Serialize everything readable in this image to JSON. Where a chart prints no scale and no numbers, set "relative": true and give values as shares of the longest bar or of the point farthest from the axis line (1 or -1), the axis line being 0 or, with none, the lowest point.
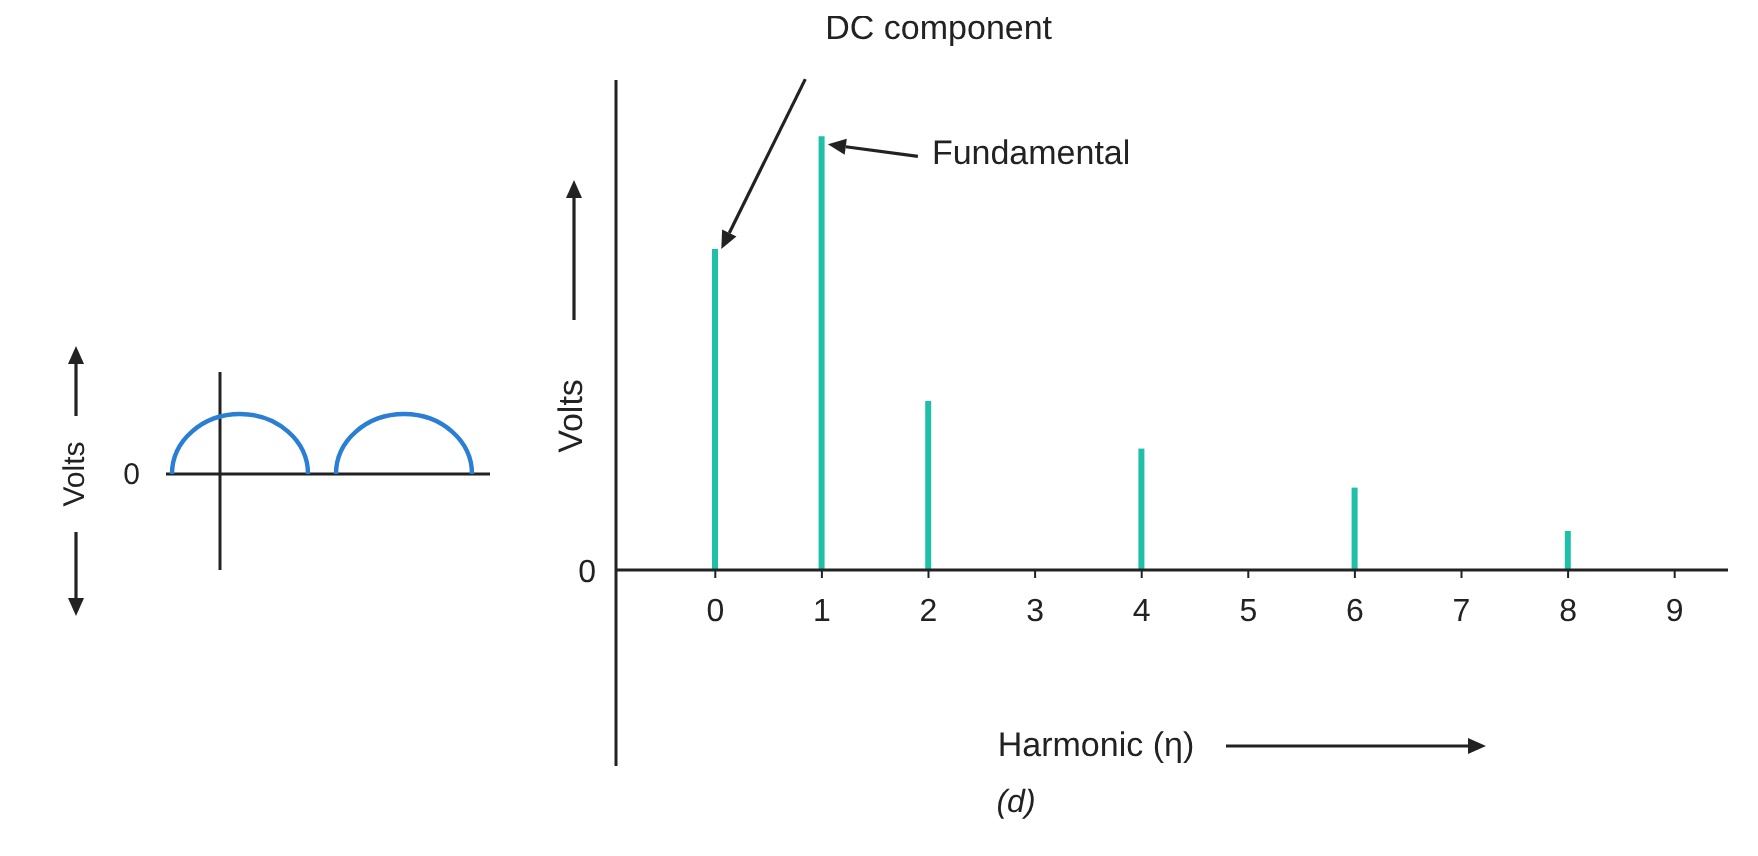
{
  "chart_data": {
    "type": "bar",
    "relative": true,
    "xlabel": "Harmonic (η)",
    "ylabel": "Volts",
    "categories": [
      "0",
      "1",
      "2",
      "3",
      "4",
      "5",
      "6",
      "7",
      "8",
      "9"
    ],
    "values": [
      0.74,
      1,
      0.39,
      0,
      0.28,
      0,
      0.19,
      0,
      0.09,
      0
    ],
    "color": "#20c0a8",
    "legend": false,
    "grid": false,
    "annotations": [
      "0",
      "DC component",
      "Fundamental",
      "(d)",
      "Volts",
      "0"
    ]
  }
}
